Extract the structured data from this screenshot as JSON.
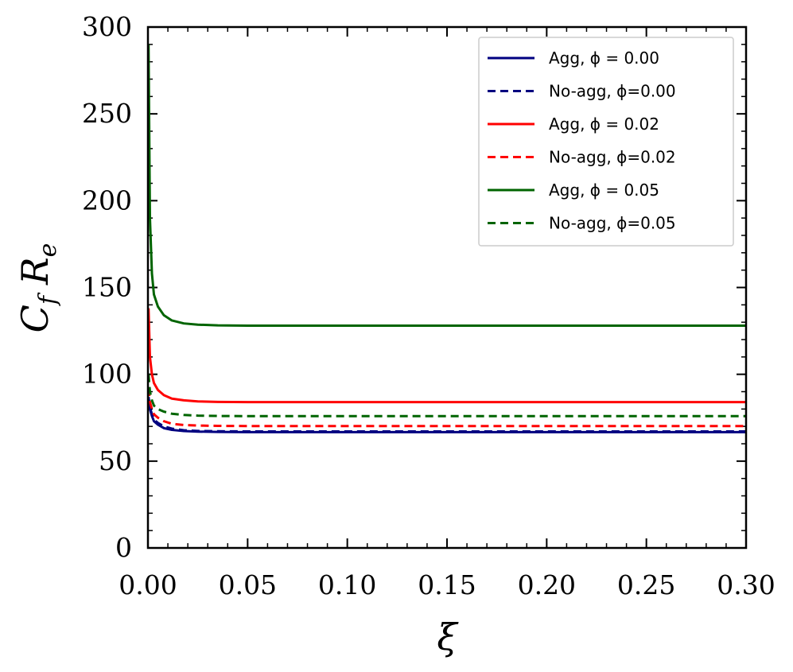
{
  "chart_data": {
    "type": "line",
    "xlabel": "ξ",
    "ylabel": {
      "main": "C",
      "sub": "f",
      "main2": "R",
      "sub2": "e"
    },
    "xlim": [
      0,
      0.3
    ],
    "ylim": [
      0,
      300
    ],
    "xticks": [
      0,
      0.05,
      0.1,
      0.15,
      0.2,
      0.25,
      0.3
    ],
    "xtick_labels": [
      "0.00",
      "0.05",
      "0.10",
      "0.15",
      "0.20",
      "0.25",
      "0.30"
    ],
    "yticks": [
      0,
      50,
      100,
      150,
      200,
      250,
      300
    ],
    "ytick_labels": [
      "0",
      "50",
      "100",
      "150",
      "200",
      "250",
      "300"
    ],
    "legend_position": "top-right",
    "series": [
      {
        "name": "Agg, ϕ = 0.00",
        "color": "#000080",
        "style": "solid",
        "x": [
          0.0003,
          0.001,
          0.002,
          0.003,
          0.005,
          0.008,
          0.012,
          0.018,
          0.025,
          0.035,
          0.05,
          0.08,
          0.15,
          0.3
        ],
        "y": [
          86,
          80,
          76,
          73,
          71,
          69,
          68,
          67.3,
          67,
          66.8,
          66.7,
          66.7,
          66.7,
          66.7
        ]
      },
      {
        "name": "No-agg, ϕ=0.00",
        "color": "#000080",
        "style": "dashed",
        "x": [
          0.0003,
          0.001,
          0.002,
          0.003,
          0.005,
          0.008,
          0.012,
          0.018,
          0.025,
          0.035,
          0.05,
          0.08,
          0.15,
          0.3
        ],
        "y": [
          87,
          81,
          77,
          74,
          72,
          70,
          68.7,
          67.8,
          67.4,
          67.2,
          67.1,
          67.1,
          67.1,
          67.1
        ]
      },
      {
        "name": "Agg, ϕ = 0.02",
        "color": "#ff0000",
        "style": "solid",
        "x": [
          0.0003,
          0.001,
          0.002,
          0.003,
          0.005,
          0.008,
          0.012,
          0.018,
          0.025,
          0.035,
          0.05,
          0.08,
          0.15,
          0.3
        ],
        "y": [
          138,
          110,
          100,
          95,
          91,
          88,
          86,
          85,
          84.4,
          84.1,
          84,
          84,
          84,
          84
        ]
      },
      {
        "name": "No-agg, ϕ=0.02",
        "color": "#ff0000",
        "style": "dashed",
        "x": [
          0.0003,
          0.001,
          0.002,
          0.003,
          0.005,
          0.008,
          0.012,
          0.018,
          0.025,
          0.035,
          0.05,
          0.08,
          0.15,
          0.3
        ],
        "y": [
          92,
          84,
          80,
          77,
          75,
          73,
          71.5,
          70.8,
          70.5,
          70.3,
          70.2,
          70.2,
          70.2,
          70.2
        ]
      },
      {
        "name": "Agg, ϕ = 0.05",
        "color": "#006400",
        "style": "solid",
        "x": [
          0.0003,
          0.001,
          0.002,
          0.003,
          0.005,
          0.008,
          0.012,
          0.018,
          0.025,
          0.035,
          0.05,
          0.08,
          0.15,
          0.3
        ],
        "y": [
          290,
          190,
          158,
          146,
          139,
          134,
          131,
          129.3,
          128.6,
          128.2,
          128,
          128,
          128,
          128
        ]
      },
      {
        "name": "No-agg, ϕ=0.05",
        "color": "#006400",
        "style": "dashed",
        "x": [
          0.0003,
          0.001,
          0.002,
          0.003,
          0.005,
          0.008,
          0.012,
          0.018,
          0.025,
          0.035,
          0.05,
          0.08,
          0.15,
          0.3
        ],
        "y": [
          100,
          90,
          85,
          82,
          80,
          78.5,
          77.3,
          76.6,
          76.2,
          76,
          75.9,
          75.9,
          75.9,
          75.9
        ]
      }
    ]
  }
}
